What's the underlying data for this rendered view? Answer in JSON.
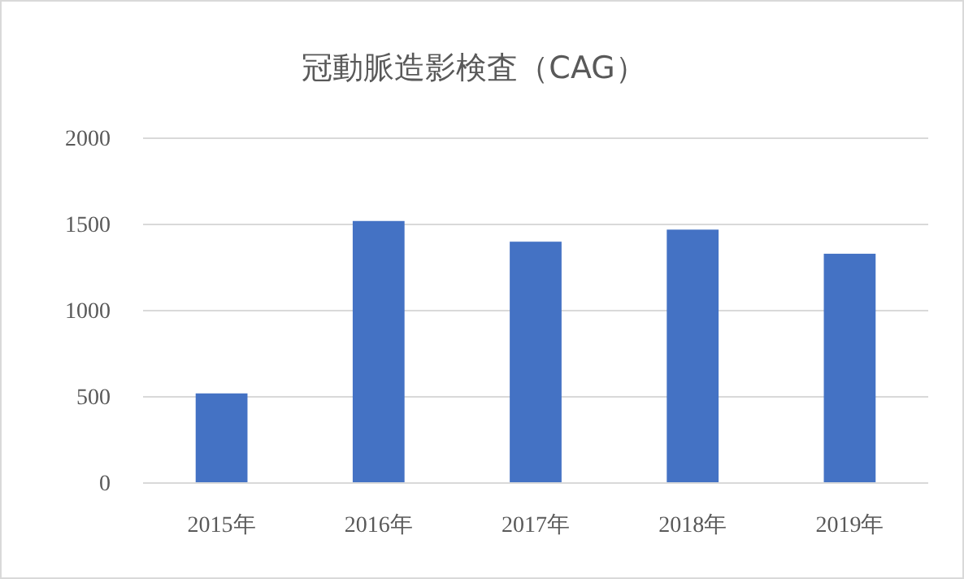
{
  "chart_data": {
    "type": "bar",
    "title": "冠動脈造影検査（CAG）",
    "categories": [
      "2015年",
      "2016年",
      "2017年",
      "2018年",
      "2019年"
    ],
    "values": [
      520,
      1520,
      1400,
      1470,
      1330
    ],
    "color": "#4472c4",
    "ylim": [
      0,
      2000
    ],
    "yticks": [
      0,
      500,
      1000,
      1500,
      2000
    ],
    "grid": "y"
  }
}
